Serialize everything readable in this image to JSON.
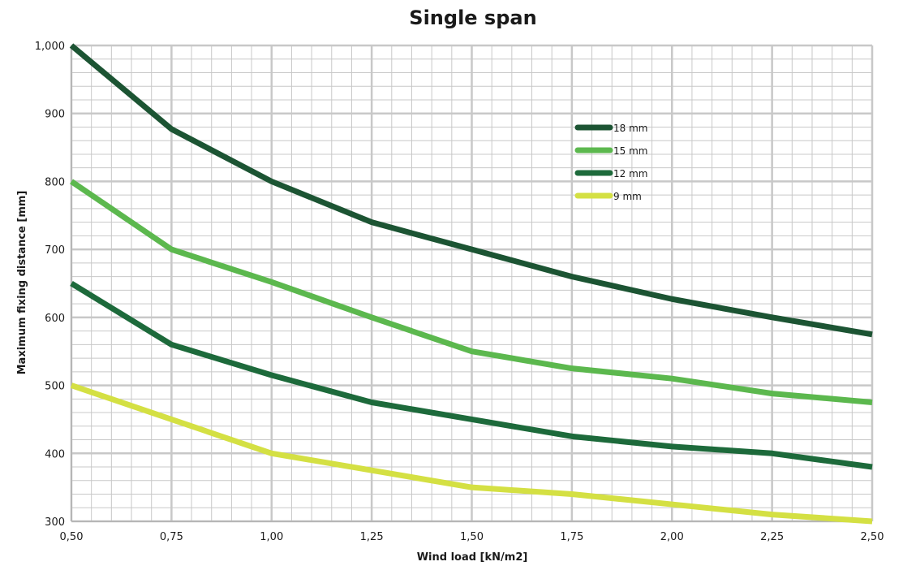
{
  "chart_data": {
    "type": "line",
    "title": "Single span",
    "xlabel": "Wind load [kN/m2]",
    "ylabel": "Maximum fixing distance [mm]",
    "x": [
      0.5,
      0.75,
      1.0,
      1.25,
      1.5,
      1.75,
      2.0,
      2.25,
      2.5
    ],
    "x_tick_labels": [
      "0,50",
      "0,75",
      "1,00",
      "1,25",
      "1,50",
      "1,75",
      "2,00",
      "2,25",
      "2,50"
    ],
    "xlim": [
      0.5,
      2.5
    ],
    "ylim": [
      300,
      1000
    ],
    "y_ticks": [
      300,
      400,
      500,
      600,
      700,
      800,
      900,
      1000
    ],
    "y_tick_labels": [
      "300",
      "400",
      "500",
      "600",
      "700",
      "800",
      "900",
      "1,000"
    ],
    "grid": true,
    "legend_position": "top-right",
    "series": [
      {
        "name": "18 mm",
        "color": "#1c5433",
        "values": [
          1000,
          877,
          800,
          740,
          700,
          660,
          627,
          600,
          575
        ]
      },
      {
        "name": "15 mm",
        "color": "#5cb84e",
        "values": [
          800,
          700,
          652,
          600,
          550,
          525,
          510,
          488,
          475
        ]
      },
      {
        "name": "12 mm",
        "color": "#1d6a3b",
        "values": [
          650,
          560,
          515,
          475,
          450,
          425,
          410,
          400,
          380
        ]
      },
      {
        "name": "9 mm",
        "color": "#d4e043",
        "values": [
          500,
          450,
          400,
          375,
          350,
          340,
          325,
          310,
          300
        ]
      }
    ]
  }
}
